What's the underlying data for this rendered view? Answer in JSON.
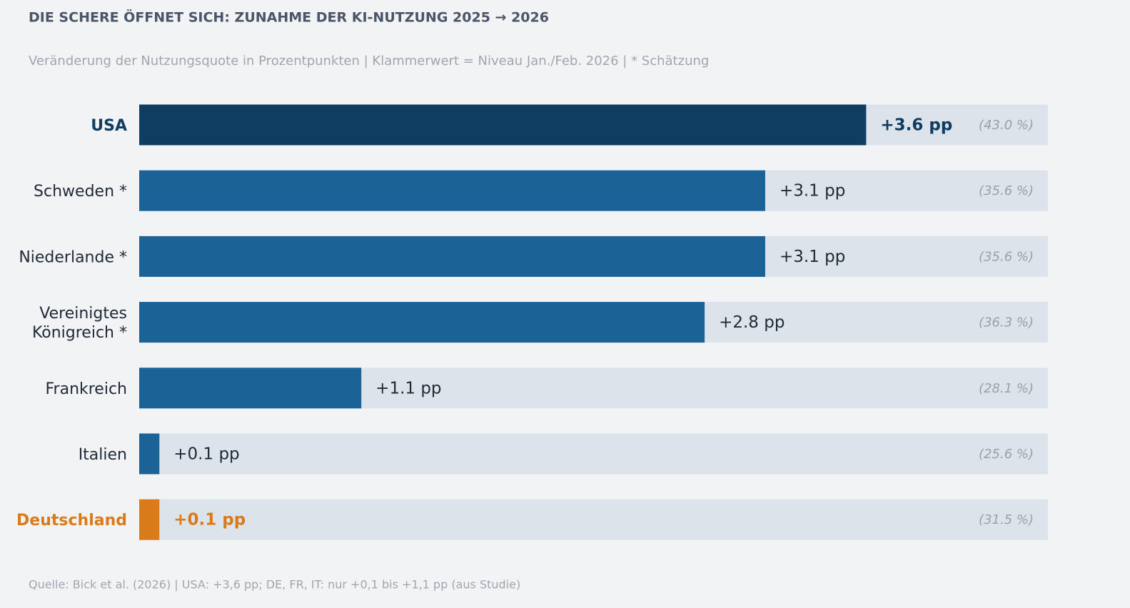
{
  "chart_data": {
    "type": "bar",
    "orientation": "horizontal",
    "title": "DIE SCHERE ÖFFNET SICH: ZUNAHME DER KI-NUTZUNG 2025 → 2026",
    "subtitle": "Veränderung der Nutzungsquote in Prozentpunkten | Klammerwert = Niveau Jan./Feb. 2026 | * Schätzung",
    "source": "Quelle: Bick et al. (2026) | USA: +3,6 pp; DE, FR, IT: nur +0,1 bis +1,1 pp (aus Studie)",
    "categories": [
      "USA",
      "Schweden *",
      "Niederlande *",
      "Vereinigtes\nKönigreich *",
      "Frankreich",
      "Italien",
      "Deutschland"
    ],
    "values": [
      3.6,
      3.1,
      3.1,
      2.8,
      1.1,
      0.1,
      0.1
    ],
    "value_labels": [
      "+3.6 pp",
      "+3.1 pp",
      "+3.1 pp",
      "+2.8 pp",
      "+1.1 pp",
      "+0.1 pp",
      "+0.1 pp"
    ],
    "levels": [
      43.0,
      35.6,
      35.6,
      36.3,
      28.1,
      25.6,
      31.5
    ],
    "level_labels": [
      "(43.0 %)",
      "(35.6 %)",
      "(35.6 %)",
      "(36.3 %)",
      "(28.1 %)",
      "(25.6 %)",
      "(31.5 %)"
    ],
    "colors": [
      "#0f3d62",
      "#1b6296",
      "#1b6296",
      "#1b6296",
      "#1b6296",
      "#1b6296",
      "#d97b1a"
    ],
    "highlight": [
      true,
      false,
      false,
      false,
      false,
      false,
      true
    ],
    "xlim": [
      0,
      4.5
    ]
  }
}
